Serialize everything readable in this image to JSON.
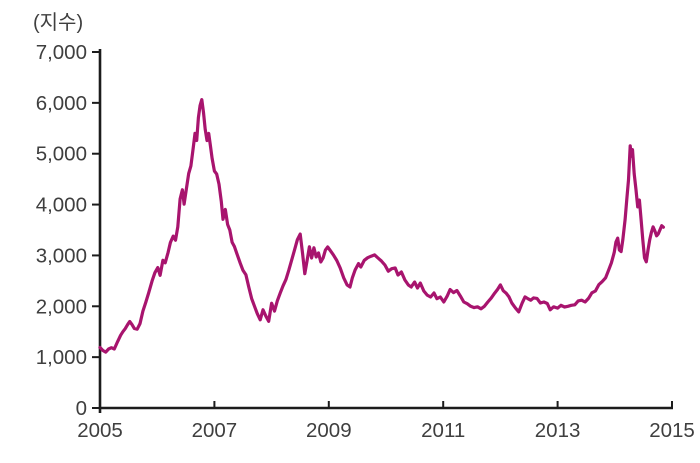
{
  "page": {
    "background": "#ffffff"
  },
  "chart_data": {
    "type": "line",
    "title": "",
    "unit_label": "(지수)",
    "xlabel": "",
    "ylabel": "(지수)",
    "xlim": [
      2005,
      2015
    ],
    "ylim": [
      0,
      7000
    ],
    "x_ticks": [
      2005,
      2007,
      2009,
      2011,
      2013,
      2015
    ],
    "x_tick_labels": [
      "2005",
      "2007",
      "2009",
      "2011",
      "2013",
      "2015"
    ],
    "y_ticks": [
      0,
      1000,
      2000,
      3000,
      4000,
      5000,
      6000,
      7000
    ],
    "y_tick_labels": [
      "0",
      "1,000",
      "2,000",
      "3,000",
      "4,000",
      "5,000",
      "6,000",
      "7,000"
    ],
    "grid": false,
    "legend": "none",
    "line_color": "#a8146e",
    "axis_color": "#1c1c1c",
    "label_color": "#3f3f3f",
    "series": [
      {
        "name": "지수",
        "points": [
          [
            2005.0,
            1190
          ],
          [
            2005.05,
            1130
          ],
          [
            2005.1,
            1100
          ],
          [
            2005.15,
            1160
          ],
          [
            2005.2,
            1185
          ],
          [
            2005.25,
            1160
          ],
          [
            2005.31,
            1310
          ],
          [
            2005.36,
            1430
          ],
          [
            2005.4,
            1500
          ],
          [
            2005.44,
            1560
          ],
          [
            2005.48,
            1635
          ],
          [
            2005.52,
            1700
          ],
          [
            2005.56,
            1640
          ],
          [
            2005.6,
            1565
          ],
          [
            2005.65,
            1550
          ],
          [
            2005.7,
            1660
          ],
          [
            2005.75,
            1905
          ],
          [
            2005.8,
            2080
          ],
          [
            2005.85,
            2260
          ],
          [
            2005.91,
            2500
          ],
          [
            2005.96,
            2660
          ],
          [
            2006.01,
            2760
          ],
          [
            2006.05,
            2610
          ],
          [
            2006.1,
            2905
          ],
          [
            2006.14,
            2855
          ],
          [
            2006.19,
            3060
          ],
          [
            2006.23,
            3255
          ],
          [
            2006.28,
            3380
          ],
          [
            2006.32,
            3300
          ],
          [
            2006.36,
            3560
          ],
          [
            2006.4,
            4110
          ],
          [
            2006.44,
            4290
          ],
          [
            2006.47,
            4010
          ],
          [
            2006.51,
            4310
          ],
          [
            2006.55,
            4610
          ],
          [
            2006.59,
            4760
          ],
          [
            2006.63,
            5110
          ],
          [
            2006.66,
            5400
          ],
          [
            2006.69,
            5260
          ],
          [
            2006.72,
            5710
          ],
          [
            2006.75,
            5950
          ],
          [
            2006.78,
            6065
          ],
          [
            2006.81,
            5810
          ],
          [
            2006.84,
            5480
          ],
          [
            2006.87,
            5260
          ],
          [
            2006.9,
            5400
          ],
          [
            2006.93,
            5160
          ],
          [
            2006.96,
            4910
          ],
          [
            2007.0,
            4660
          ],
          [
            2007.04,
            4600
          ],
          [
            2007.08,
            4400
          ],
          [
            2007.12,
            4060
          ],
          [
            2007.15,
            3710
          ],
          [
            2007.19,
            3905
          ],
          [
            2007.23,
            3610
          ],
          [
            2007.27,
            3500
          ],
          [
            2007.31,
            3260
          ],
          [
            2007.35,
            3175
          ],
          [
            2007.4,
            3010
          ],
          [
            2007.45,
            2855
          ],
          [
            2007.5,
            2705
          ],
          [
            2007.55,
            2620
          ],
          [
            2007.6,
            2385
          ],
          [
            2007.65,
            2155
          ],
          [
            2007.7,
            2005
          ],
          [
            2007.75,
            1855
          ],
          [
            2007.8,
            1735
          ],
          [
            2007.85,
            1930
          ],
          [
            2007.9,
            1805
          ],
          [
            2007.95,
            1705
          ],
          [
            2008.0,
            2060
          ],
          [
            2008.05,
            1905
          ],
          [
            2008.1,
            2105
          ],
          [
            2008.15,
            2260
          ],
          [
            2008.2,
            2400
          ],
          [
            2008.25,
            2525
          ],
          [
            2008.3,
            2710
          ],
          [
            2008.35,
            2905
          ],
          [
            2008.4,
            3105
          ],
          [
            2008.45,
            3305
          ],
          [
            2008.5,
            3420
          ],
          [
            2008.54,
            3050
          ],
          [
            2008.58,
            2640
          ],
          [
            2008.62,
            2900
          ],
          [
            2008.66,
            3170
          ],
          [
            2008.7,
            2950
          ],
          [
            2008.74,
            3150
          ],
          [
            2008.78,
            2970
          ],
          [
            2008.82,
            3050
          ],
          [
            2008.86,
            2870
          ],
          [
            2008.9,
            2950
          ],
          [
            2008.94,
            3105
          ],
          [
            2008.98,
            3165
          ],
          [
            2009.02,
            3107
          ],
          [
            2009.08,
            3010
          ],
          [
            2009.14,
            2900
          ],
          [
            2009.2,
            2753
          ],
          [
            2009.26,
            2560
          ],
          [
            2009.32,
            2420
          ],
          [
            2009.37,
            2380
          ],
          [
            2009.41,
            2556
          ],
          [
            2009.46,
            2714
          ],
          [
            2009.52,
            2840
          ],
          [
            2009.56,
            2773
          ],
          [
            2009.62,
            2905
          ],
          [
            2009.68,
            2955
          ],
          [
            2009.74,
            2985
          ],
          [
            2009.8,
            3010
          ],
          [
            2009.86,
            2950
          ],
          [
            2009.92,
            2890
          ],
          [
            2009.98,
            2812
          ],
          [
            2010.04,
            2690
          ],
          [
            2010.1,
            2740
          ],
          [
            2010.16,
            2753
          ],
          [
            2010.21,
            2615
          ],
          [
            2010.27,
            2675
          ],
          [
            2010.33,
            2517
          ],
          [
            2010.39,
            2420
          ],
          [
            2010.44,
            2380
          ],
          [
            2010.5,
            2478
          ],
          [
            2010.55,
            2360
          ],
          [
            2010.6,
            2458
          ],
          [
            2010.66,
            2300
          ],
          [
            2010.72,
            2220
          ],
          [
            2010.78,
            2183
          ],
          [
            2010.84,
            2261
          ],
          [
            2010.89,
            2150
          ],
          [
            2010.95,
            2183
          ],
          [
            2011.01,
            2085
          ],
          [
            2011.07,
            2200
          ],
          [
            2011.12,
            2330
          ],
          [
            2011.18,
            2270
          ],
          [
            2011.24,
            2310
          ],
          [
            2011.3,
            2200
          ],
          [
            2011.36,
            2085
          ],
          [
            2011.42,
            2050
          ],
          [
            2011.48,
            2000
          ],
          [
            2011.54,
            1975
          ],
          [
            2011.6,
            1990
          ],
          [
            2011.66,
            1950
          ],
          [
            2011.72,
            2000
          ],
          [
            2011.78,
            2085
          ],
          [
            2011.84,
            2160
          ],
          [
            2011.9,
            2260
          ],
          [
            2011.95,
            2330
          ],
          [
            2012.0,
            2420
          ],
          [
            2012.05,
            2305
          ],
          [
            2012.1,
            2260
          ],
          [
            2012.15,
            2185
          ],
          [
            2012.2,
            2065
          ],
          [
            2012.26,
            1970
          ],
          [
            2012.32,
            1890
          ],
          [
            2012.38,
            2060
          ],
          [
            2012.43,
            2185
          ],
          [
            2012.48,
            2150
          ],
          [
            2012.53,
            2120
          ],
          [
            2012.58,
            2165
          ],
          [
            2012.64,
            2155
          ],
          [
            2012.7,
            2065
          ],
          [
            2012.76,
            2085
          ],
          [
            2012.82,
            2055
          ],
          [
            2012.87,
            1930
          ],
          [
            2012.93,
            1990
          ],
          [
            2013.0,
            1965
          ],
          [
            2013.06,
            2020
          ],
          [
            2013.12,
            1985
          ],
          [
            2013.18,
            2000
          ],
          [
            2013.24,
            2020
          ],
          [
            2013.3,
            2030
          ],
          [
            2013.36,
            2105
          ],
          [
            2013.42,
            2120
          ],
          [
            2013.48,
            2085
          ],
          [
            2013.54,
            2155
          ],
          [
            2013.6,
            2265
          ],
          [
            2013.66,
            2300
          ],
          [
            2013.72,
            2425
          ],
          [
            2013.78,
            2485
          ],
          [
            2013.84,
            2560
          ],
          [
            2013.89,
            2705
          ],
          [
            2013.94,
            2855
          ],
          [
            2013.99,
            3055
          ],
          [
            2014.02,
            3260
          ],
          [
            2014.05,
            3340
          ],
          [
            2014.08,
            3105
          ],
          [
            2014.11,
            3075
          ],
          [
            2014.14,
            3305
          ],
          [
            2014.18,
            3705
          ],
          [
            2014.21,
            4105
          ],
          [
            2014.24,
            4485
          ],
          [
            2014.27,
            5155
          ],
          [
            2014.29,
            4950
          ],
          [
            2014.31,
            5080
          ],
          [
            2014.34,
            4605
          ],
          [
            2014.37,
            4290
          ],
          [
            2014.4,
            3955
          ],
          [
            2014.43,
            4090
          ],
          [
            2014.46,
            3705
          ],
          [
            2014.49,
            3305
          ],
          [
            2014.52,
            2955
          ],
          [
            2014.55,
            2875
          ],
          [
            2014.58,
            3105
          ],
          [
            2014.61,
            3305
          ],
          [
            2014.64,
            3455
          ],
          [
            2014.67,
            3560
          ],
          [
            2014.7,
            3485
          ],
          [
            2014.73,
            3385
          ],
          [
            2014.76,
            3425
          ],
          [
            2014.79,
            3505
          ],
          [
            2014.82,
            3585
          ],
          [
            2014.85,
            3555
          ]
        ]
      }
    ]
  }
}
